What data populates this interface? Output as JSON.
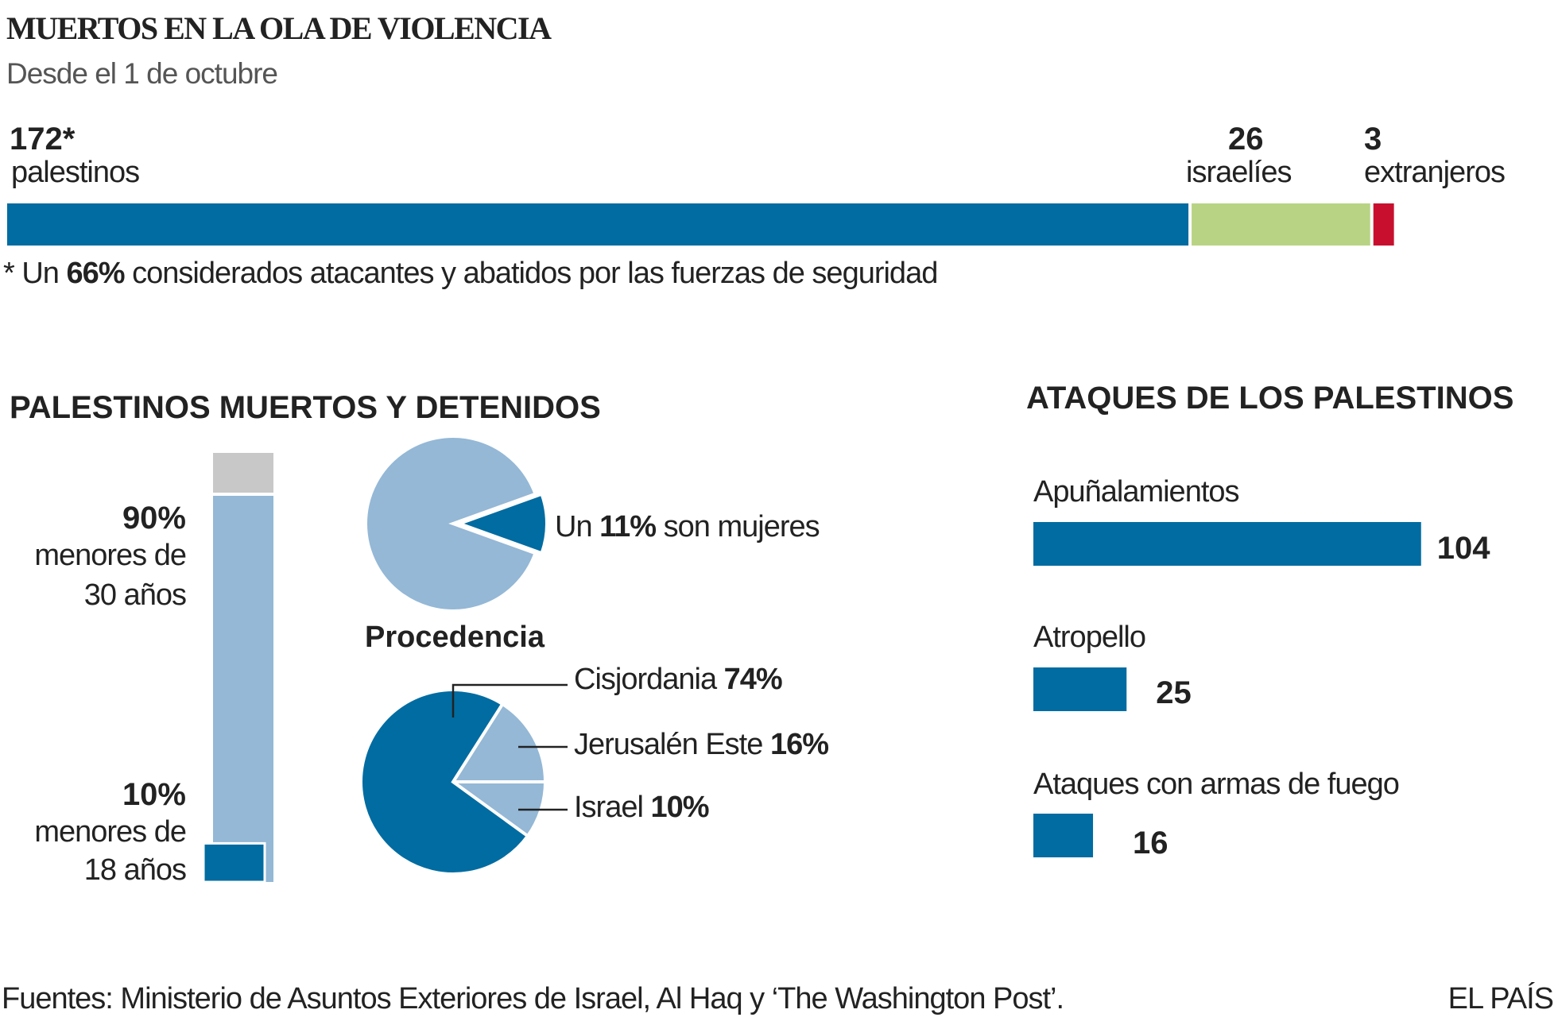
{
  "header": {
    "title": "MUERTOS EN LA OLA DE VIOLENCIA",
    "subtitle": "Desde el 1 de octubre"
  },
  "footnote": {
    "prefix": "* Un ",
    "bold": "66%",
    "suffix": " considerados atacantes y abatidos por las fuerzas de seguridad"
  },
  "footer": {
    "sources": "Fuentes: Ministerio de Asuntos Exteriores de Israel, Al Haq y ‘The Washington Post’.",
    "brand": "EL PAÍS"
  },
  "colors": {
    "dark_blue": "#006ca1",
    "light_blue": "#94b8d6",
    "gray": "#c8c8c8",
    "green": "#b8d384",
    "red": "#c8102e"
  },
  "chart_data": [
    {
      "type": "bar",
      "orientation": "horizontal-stacked",
      "categories": [
        "palestinos",
        "israelíes",
        "extranjeros"
      ],
      "values": [
        172,
        26,
        3
      ],
      "value_labels": [
        "172*",
        "26",
        "3"
      ],
      "colors": [
        "#006ca1",
        "#b8d384",
        "#c8102e"
      ]
    },
    {
      "type": "bar",
      "orientation": "vertical-stacked",
      "title": "PALESTINOS MUERTOS Y DETENIDOS",
      "segments": [
        {
          "label_value": "90%",
          "label_text_1": "menores de",
          "label_text_2": "30 años",
          "value": 90,
          "color": "#94b8d6"
        },
        {
          "label_value": "10%",
          "label_text_1": "menores de",
          "label_text_2": "18 años",
          "value": 10,
          "color": "#006ca1"
        }
      ]
    },
    {
      "type": "pie",
      "slices": [
        {
          "label": "mujeres",
          "value": 11,
          "color": "#006ca1"
        },
        {
          "label": "",
          "value": 89,
          "color": "#94b8d6"
        }
      ],
      "annotation": {
        "prefix": "Un ",
        "bold": "11%",
        "suffix": " son mujeres"
      }
    },
    {
      "type": "pie",
      "title": "Procedencia",
      "slices": [
        {
          "label": "Cisjordania",
          "value": 74,
          "value_label": "74%",
          "color": "#006ca1"
        },
        {
          "label": "Jerusalén Este",
          "value": 16,
          "value_label": "16%",
          "color": "#94b8d6"
        },
        {
          "label": "Israel",
          "value": 10,
          "value_label": "10%",
          "color": "#94b8d6"
        }
      ]
    },
    {
      "type": "bar",
      "orientation": "horizontal",
      "title": "ATAQUES DE LOS PALESTINOS",
      "categories": [
        "Apuñalamientos",
        "Atropello",
        "Ataques con armas de fuego"
      ],
      "values": [
        104,
        25,
        16
      ],
      "color": "#006ca1"
    }
  ]
}
